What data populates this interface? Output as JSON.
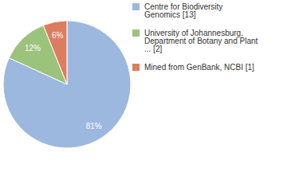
{
  "chart_data": {
    "type": "pie",
    "categories": [
      "Centre for Biodiversity Genomics [13]",
      "University of Johannesburg, Department of Botany and Plant ... [2]",
      "Mined from GenBank, NCBI [1]"
    ],
    "values": [
      81,
      12,
      6
    ],
    "value_labels": [
      "81%",
      "12%",
      "6%"
    ],
    "colors": [
      "#9cb8df",
      "#9bc37c",
      "#dd7d5f"
    ],
    "data_labels": true,
    "legend": "right"
  }
}
